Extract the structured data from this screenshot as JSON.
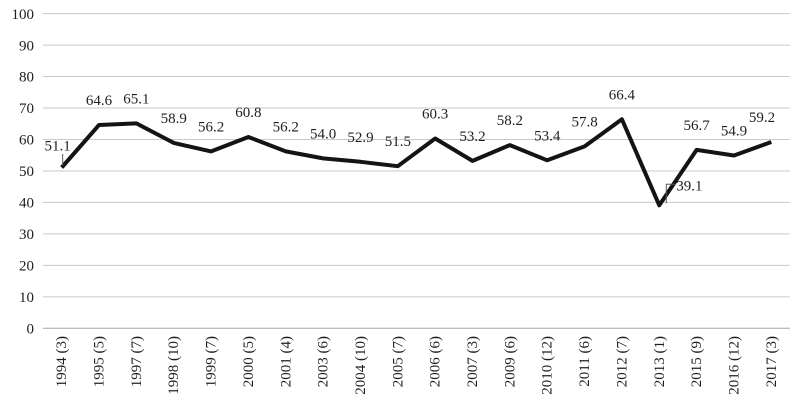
{
  "chart_data": {
    "type": "line",
    "title": "",
    "xlabel": "",
    "ylabel": "",
    "categories": [
      "1994 (3)",
      "1995 (5)",
      "1997 (7)",
      "1998 (10)",
      "1999 (7)",
      "2000 (5)",
      "2001 (4)",
      "2003 (6)",
      "2004 (10)",
      "2005 (7)",
      "2006 (6)",
      "2007 (3)",
      "2009 (6)",
      "2010 (12)",
      "2011 (6)",
      "2012 (7)",
      "2013 (1)",
      "2015 (9)",
      "2016 (12)",
      "2017 (3)"
    ],
    "values": [
      51.1,
      64.6,
      65.1,
      58.9,
      56.2,
      60.8,
      56.2,
      54.0,
      52.9,
      51.5,
      60.3,
      53.2,
      58.2,
      53.4,
      57.8,
      66.4,
      39.1,
      56.7,
      54.9,
      59.2
    ],
    "value_labels": [
      "51.1",
      "64.6",
      "65.1",
      "58.9",
      "56.2",
      "60.8",
      "56.2",
      "54.0",
      "52.9",
      "51.5",
      "60.3",
      "53.2",
      "58.2",
      "53.4",
      "57.8",
      "66.4",
      "39.1",
      "56.7",
      "54.9",
      "59.2"
    ],
    "y_ticks": [
      0,
      10,
      20,
      30,
      40,
      50,
      60,
      70,
      80,
      90,
      100
    ],
    "ylim": [
      0,
      100
    ],
    "grid": true,
    "legend": false,
    "series_name": "",
    "callouts": [
      {
        "index": 0,
        "label": "51.1",
        "leader": "down"
      },
      {
        "index": 16,
        "label": "39.1",
        "leader": "elbow-right"
      }
    ],
    "colors": {
      "line": "#141414",
      "gridline": "#c9c9c9",
      "axis_line": "#a6a6a6",
      "leader": "#595959",
      "text": "#1f1f1f"
    }
  }
}
